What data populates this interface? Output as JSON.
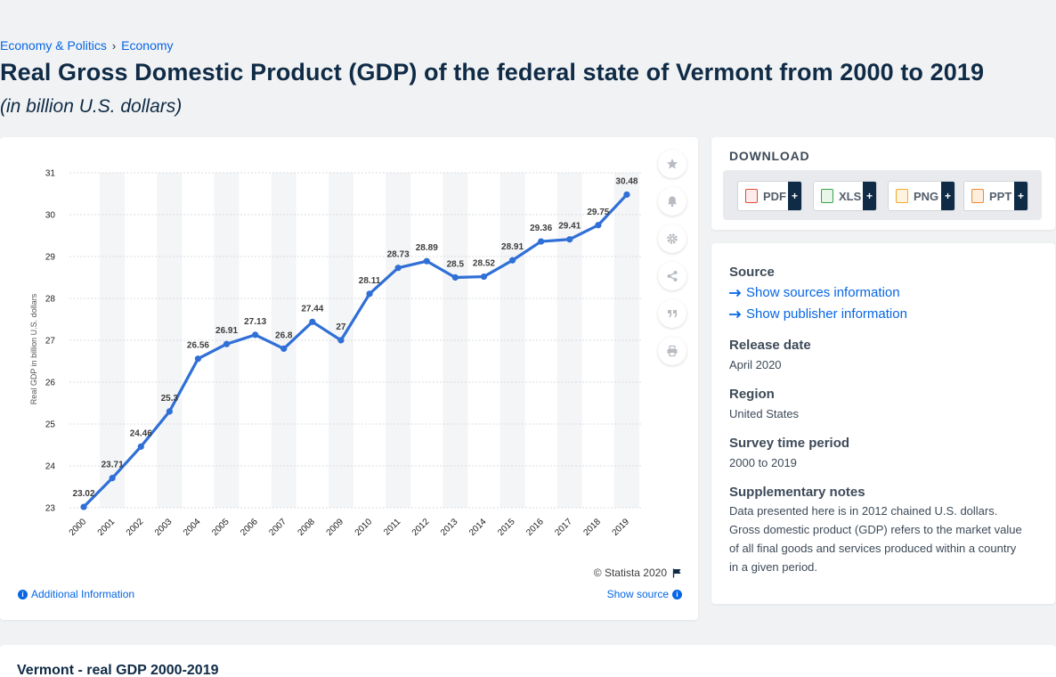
{
  "breadcrumb": {
    "items": [
      "Economy & Politics",
      "Economy"
    ],
    "separator": "›"
  },
  "title": "Real Gross Domestic Product (GDP) of the federal state of Vermont from 2000 to 2019",
  "subtitle": "(in billion U.S. dollars)",
  "chart_footer": {
    "copyright": "© Statista 2020",
    "additional_info": "Additional Information",
    "show_source": "Show source"
  },
  "chart_data": {
    "type": "line",
    "x": [
      "2000",
      "2001",
      "2002",
      "2003",
      "2004",
      "2005",
      "2006",
      "2007",
      "2008",
      "2009",
      "2010",
      "2011",
      "2012",
      "2013",
      "2014",
      "2015",
      "2016",
      "2017",
      "2018",
      "2019"
    ],
    "series": [
      {
        "values": [
          23.02,
          23.71,
          24.46,
          25.3,
          26.56,
          26.91,
          27.13,
          26.8,
          27.44,
          27,
          28.11,
          28.73,
          28.89,
          28.5,
          28.52,
          28.91,
          29.36,
          29.41,
          29.75,
          30.48
        ],
        "labels": [
          "23.02",
          "23.71",
          "24.46",
          "25.3",
          "26.56",
          "26.91",
          "27.13",
          "26.8",
          "27.44",
          "27",
          "28.11",
          "28.73",
          "28.89",
          "28.5",
          "28.52",
          "28.91",
          "29.36",
          "29.41",
          "29.75",
          "30.48"
        ]
      }
    ],
    "ylabel": "Real GDP in billion U.S. dollars",
    "ylim": [
      23,
      31
    ],
    "yticks": [
      23,
      24,
      25,
      26,
      27,
      28,
      29,
      30,
      31
    ],
    "line_color": "#2f6fd6",
    "grid": true
  },
  "download": {
    "title": "DOWNLOAD",
    "buttons": [
      {
        "label": "PDF",
        "icon": "pdf-file-icon",
        "color": "#e2473b"
      },
      {
        "label": "XLS",
        "icon": "xls-file-icon",
        "color": "#37a34a"
      },
      {
        "label": "PNG",
        "icon": "png-file-icon",
        "color": "#f0a92a"
      },
      {
        "label": "PPT",
        "icon": "ppt-file-icon",
        "color": "#f08a2a"
      }
    ],
    "plus": "+"
  },
  "meta": {
    "source_heading": "Source",
    "show_sources": "Show sources information",
    "show_publisher": "Show publisher information",
    "release_heading": "Release date",
    "release_value": "April 2020",
    "region_heading": "Region",
    "region_value": "United States",
    "survey_heading": "Survey time period",
    "survey_value": "2000 to 2019",
    "notes_heading": "Supplementary notes",
    "notes_value": "Data presented here is in 2012 chained U.S. dollars. Gross domestic product (GDP) refers to the market value of all final goods and services produced within a country in a given period."
  },
  "bottom": {
    "title": "Vermont - real GDP 2000-2019"
  },
  "tools": [
    "star-icon",
    "bell-icon",
    "gear-icon",
    "share-icon",
    "quote-icon",
    "print-icon"
  ],
  "colors": {
    "accent": "#0666e5",
    "dark": "#0f2b46"
  }
}
